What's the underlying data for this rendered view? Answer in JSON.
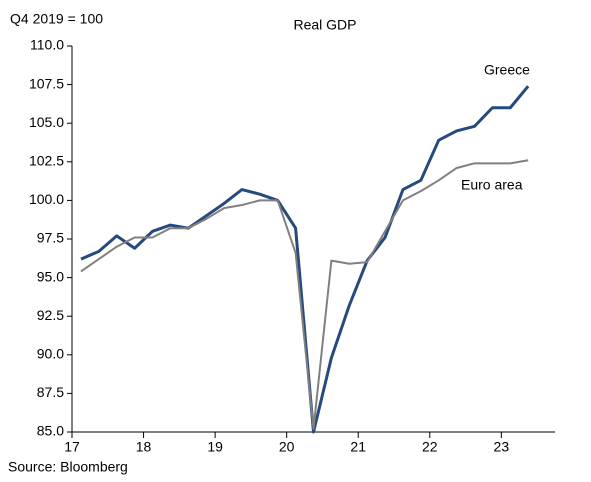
{
  "chart_data": {
    "type": "line",
    "title": "Real GDP",
    "y_label": "Q4 2019 = 100",
    "source": "Source: Bloomberg",
    "x": [
      17.125,
      17.375,
      17.625,
      17.875,
      18.125,
      18.375,
      18.625,
      18.875,
      19.125,
      19.375,
      19.625,
      19.875,
      20.125,
      20.375,
      20.625,
      20.875,
      21.125,
      21.375,
      21.625,
      21.875,
      22.125,
      22.375,
      22.625,
      22.875,
      23.125,
      23.375
    ],
    "series": [
      {
        "name": "Greece",
        "color": "#264a7d",
        "width": 3,
        "values": [
          96.2,
          96.7,
          97.7,
          96.9,
          98.0,
          98.4,
          98.2,
          99.0,
          99.8,
          100.7,
          100.4,
          100.0,
          98.2,
          85.0,
          89.8,
          93.2,
          96.1,
          97.6,
          100.7,
          101.3,
          103.9,
          104.5,
          104.8,
          106.0,
          106.0,
          107.4
        ]
      },
      {
        "name": "Euro area",
        "color": "#808080",
        "width": 2,
        "values": [
          95.4,
          96.2,
          97.0,
          97.6,
          97.6,
          98.2,
          98.2,
          98.8,
          99.5,
          99.7,
          100.0,
          100.0,
          96.6,
          85.2,
          96.1,
          95.9,
          96.0,
          98.0,
          100.0,
          100.6,
          101.3,
          102.1,
          102.4,
          102.4,
          102.4,
          102.6
        ]
      }
    ],
    "xlim": [
      17,
      23.75
    ],
    "xticks": [
      17,
      18,
      19,
      20,
      21,
      22,
      23
    ],
    "ylim": [
      85,
      110
    ],
    "yticks": [
      {
        "value": 85,
        "label": "85.0"
      },
      {
        "value": 87.5,
        "label": "87.5"
      },
      {
        "value": 90,
        "label": "90.0"
      },
      {
        "value": 92.5,
        "label": "92.5"
      },
      {
        "value": 95,
        "label": "95.0"
      },
      {
        "value": 97.5,
        "label": "97.5"
      },
      {
        "value": 100,
        "label": "100.0"
      },
      {
        "value": 102.5,
        "label": "102.5"
      },
      {
        "value": 105,
        "label": "105.0"
      },
      {
        "value": 107.5,
        "label": "107.5"
      },
      {
        "value": 110,
        "label": "110.0"
      }
    ],
    "grid": false
  }
}
